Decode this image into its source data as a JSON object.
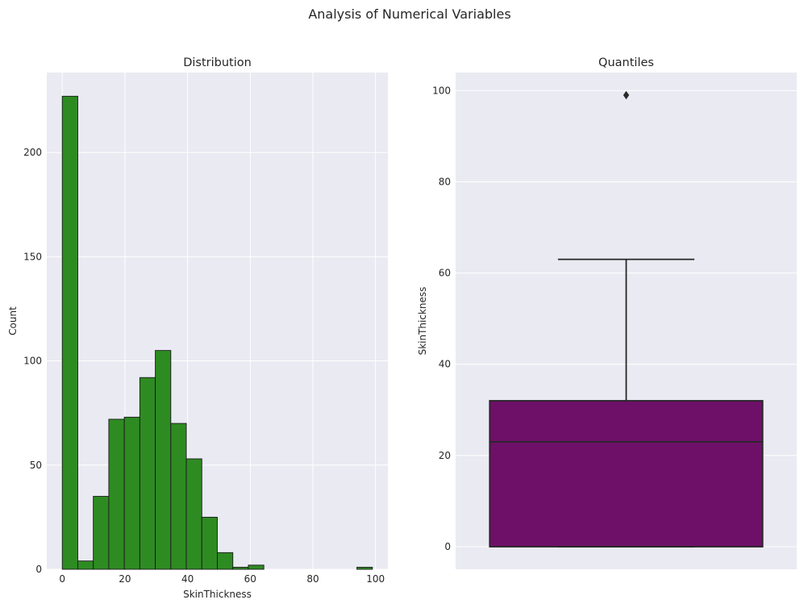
{
  "figure": {
    "suptitle": "Analysis of Numerical Variables"
  },
  "chart_data": [
    {
      "type": "histogram",
      "title": "Distribution",
      "xlabel": "SkinThickness",
      "ylabel": "Count",
      "xlim": [
        -4.95,
        103.95
      ],
      "ylim": [
        0,
        238.35
      ],
      "xticks": [
        0,
        20,
        40,
        60,
        80,
        100
      ],
      "yticks": [
        0,
        50,
        100,
        150,
        200
      ],
      "grid": true,
      "bar_color": "#2e8b22",
      "bin_width": 4.95,
      "bins": [
        {
          "x0": 0.0,
          "x1": 4.95,
          "count": 227
        },
        {
          "x0": 4.95,
          "x1": 9.9,
          "count": 4
        },
        {
          "x0": 9.9,
          "x1": 14.85,
          "count": 35
        },
        {
          "x0": 14.85,
          "x1": 19.8,
          "count": 72
        },
        {
          "x0": 19.8,
          "x1": 24.75,
          "count": 73
        },
        {
          "x0": 24.75,
          "x1": 29.7,
          "count": 92
        },
        {
          "x0": 29.7,
          "x1": 34.65,
          "count": 105
        },
        {
          "x0": 34.65,
          "x1": 39.6,
          "count": 70
        },
        {
          "x0": 39.6,
          "x1": 44.55,
          "count": 53
        },
        {
          "x0": 44.55,
          "x1": 49.5,
          "count": 25
        },
        {
          "x0": 49.5,
          "x1": 54.45,
          "count": 8
        },
        {
          "x0": 54.45,
          "x1": 59.4,
          "count": 1
        },
        {
          "x0": 59.4,
          "x1": 64.35,
          "count": 2
        },
        {
          "x0": 64.35,
          "x1": 69.3,
          "count": 0
        },
        {
          "x0": 69.3,
          "x1": 74.25,
          "count": 0
        },
        {
          "x0": 74.25,
          "x1": 79.2,
          "count": 0
        },
        {
          "x0": 79.2,
          "x1": 84.15,
          "count": 0
        },
        {
          "x0": 84.15,
          "x1": 89.1,
          "count": 0
        },
        {
          "x0": 89.1,
          "x1": 94.05,
          "count": 0
        },
        {
          "x0": 94.05,
          "x1": 99.0,
          "count": 1
        }
      ]
    },
    {
      "type": "box",
      "title": "Quantiles",
      "ylabel": "SkinThickness",
      "ylim": [
        -4.95,
        103.95
      ],
      "yticks": [
        0,
        20,
        40,
        60,
        80,
        100
      ],
      "grid": true,
      "box_color": "#6e1068",
      "stats": {
        "min": 0,
        "q1": 0,
        "median": 23,
        "q3": 32,
        "whisker_low": 0,
        "whisker_high": 63,
        "outliers": [
          99
        ]
      }
    }
  ]
}
